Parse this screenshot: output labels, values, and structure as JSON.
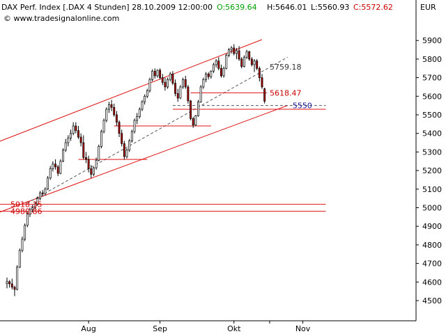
{
  "header": {
    "title": "DAX Perf. Index [.DAX  4 Stunden] 28.10.2009 12:00:00",
    "open": "O:5639.64",
    "high": "H:5646.01",
    "low": "L:5560.93",
    "close": "C:5572.62",
    "watermark": "© www.tradesignalonline.com",
    "currency": "EUR"
  },
  "colors": {
    "background": "#ffffff",
    "candle_up": "#ffffff",
    "candle_down": "#b00000",
    "candle_outline": "#000000",
    "support_resistance": "#e01010",
    "channel": "#e01010",
    "midline": "#555555",
    "target": "#1a1a99",
    "axis": "#000000",
    "open_text": "#00a000",
    "close_text": "#cc0000"
  },
  "chart_data": {
    "type": "candlestick",
    "timeframe": "4 Stunden",
    "y_axis": {
      "min": 4450,
      "max": 5950,
      "ticks": [
        4500,
        4600,
        4700,
        4800,
        4900,
        5000,
        5100,
        5200,
        5300,
        5400,
        5500,
        5600,
        5700,
        5800,
        5900
      ]
    },
    "x_axis": {
      "bar_count": 125,
      "ticks": [
        {
          "label": "Aug",
          "bar": 32
        },
        {
          "label": "Sep",
          "bar": 60
        },
        {
          "label": "Okt",
          "bar": 89
        }
      ],
      "unlabeled_ticks": [
        103
      ],
      "last_label": "Nov"
    },
    "bars": [
      [
        4591,
        4624,
        4566,
        4602
      ],
      [
        4602,
        4610,
        4570,
        4590
      ],
      [
        4590,
        4618,
        4560,
        4572
      ],
      [
        4572,
        4580,
        4524,
        4560
      ],
      [
        4560,
        4690,
        4555,
        4680
      ],
      [
        4680,
        4780,
        4675,
        4770
      ],
      [
        4770,
        4845,
        4760,
        4830
      ],
      [
        4830,
        4915,
        4820,
        4905
      ],
      [
        4905,
        4980,
        4895,
        4965
      ],
      [
        4965,
        5000,
        4950,
        4990
      ],
      [
        4990,
        5015,
        4975,
        5000
      ],
      [
        5000,
        5030,
        4990,
        5020
      ],
      [
        5020,
        5060,
        5010,
        5050
      ],
      [
        5050,
        5090,
        5040,
        5080
      ],
      [
        5080,
        5095,
        5060,
        5075
      ],
      [
        5075,
        5110,
        5065,
        5100
      ],
      [
        5100,
        5170,
        5095,
        5160
      ],
      [
        5160,
        5225,
        5150,
        5210
      ],
      [
        5210,
        5250,
        5195,
        5235
      ],
      [
        5235,
        5260,
        5205,
        5220
      ],
      [
        5220,
        5230,
        5170,
        5185
      ],
      [
        5185,
        5260,
        5180,
        5250
      ],
      [
        5250,
        5320,
        5245,
        5310
      ],
      [
        5310,
        5370,
        5300,
        5350
      ],
      [
        5350,
        5390,
        5330,
        5375
      ],
      [
        5375,
        5420,
        5360,
        5400
      ],
      [
        5400,
        5460,
        5390,
        5440
      ],
      [
        5440,
        5460,
        5400,
        5415
      ],
      [
        5415,
        5440,
        5370,
        5380
      ],
      [
        5380,
        5400,
        5330,
        5350
      ],
      [
        5350,
        5390,
        5260,
        5270
      ],
      [
        5270,
        5300,
        5240,
        5260
      ],
      [
        5260,
        5280,
        5190,
        5210
      ],
      [
        5210,
        5230,
        5160,
        5180
      ],
      [
        5180,
        5220,
        5170,
        5215
      ],
      [
        5215,
        5270,
        5205,
        5255
      ],
      [
        5255,
        5340,
        5250,
        5330
      ],
      [
        5330,
        5420,
        5320,
        5410
      ],
      [
        5410,
        5480,
        5400,
        5470
      ],
      [
        5470,
        5540,
        5460,
        5530
      ],
      [
        5530,
        5570,
        5510,
        5555
      ],
      [
        5555,
        5580,
        5520,
        5540
      ],
      [
        5540,
        5560,
        5490,
        5500
      ],
      [
        5500,
        5520,
        5440,
        5460
      ],
      [
        5460,
        5470,
        5380,
        5400
      ],
      [
        5400,
        5420,
        5330,
        5345
      ],
      [
        5345,
        5360,
        5260,
        5275
      ],
      [
        5275,
        5320,
        5265,
        5310
      ],
      [
        5310,
        5370,
        5300,
        5360
      ],
      [
        5360,
        5420,
        5350,
        5410
      ],
      [
        5410,
        5480,
        5400,
        5470
      ],
      [
        5470,
        5510,
        5450,
        5490
      ],
      [
        5490,
        5540,
        5480,
        5530
      ],
      [
        5530,
        5580,
        5520,
        5570
      ],
      [
        5570,
        5610,
        5555,
        5600
      ],
      [
        5600,
        5640,
        5590,
        5630
      ],
      [
        5630,
        5700,
        5620,
        5690
      ],
      [
        5690,
        5745,
        5680,
        5735
      ],
      [
        5735,
        5750,
        5695,
        5710
      ],
      [
        5710,
        5745,
        5700,
        5740
      ],
      [
        5740,
        5750,
        5690,
        5700
      ],
      [
        5700,
        5720,
        5660,
        5675
      ],
      [
        5675,
        5700,
        5630,
        5650
      ],
      [
        5650,
        5700,
        5640,
        5690
      ],
      [
        5690,
        5730,
        5680,
        5720
      ],
      [
        5720,
        5735,
        5660,
        5670
      ],
      [
        5670,
        5690,
        5600,
        5615
      ],
      [
        5615,
        5640,
        5570,
        5590
      ],
      [
        5590,
        5660,
        5585,
        5650
      ],
      [
        5650,
        5700,
        5640,
        5690
      ],
      [
        5690,
        5710,
        5640,
        5650
      ],
      [
        5650,
        5660,
        5560,
        5575
      ],
      [
        5575,
        5580,
        5470,
        5480
      ],
      [
        5480,
        5490,
        5430,
        5445
      ],
      [
        5445,
        5500,
        5440,
        5495
      ],
      [
        5495,
        5580,
        5490,
        5570
      ],
      [
        5570,
        5660,
        5565,
        5650
      ],
      [
        5650,
        5700,
        5640,
        5690
      ],
      [
        5690,
        5730,
        5675,
        5720
      ],
      [
        5720,
        5730,
        5690,
        5705
      ],
      [
        5705,
        5740,
        5695,
        5735
      ],
      [
        5735,
        5780,
        5725,
        5770
      ],
      [
        5770,
        5800,
        5755,
        5790
      ],
      [
        5790,
        5810,
        5740,
        5750
      ],
      [
        5750,
        5770,
        5700,
        5710
      ],
      [
        5710,
        5760,
        5700,
        5750
      ],
      [
        5750,
        5830,
        5745,
        5820
      ],
      [
        5820,
        5860,
        5810,
        5850
      ],
      [
        5850,
        5870,
        5830,
        5860
      ],
      [
        5860,
        5880,
        5820,
        5830
      ],
      [
        5830,
        5860,
        5800,
        5845
      ],
      [
        5845,
        5870,
        5790,
        5800
      ],
      [
        5800,
        5810,
        5750,
        5760
      ],
      [
        5760,
        5820,
        5755,
        5810
      ],
      [
        5810,
        5850,
        5800,
        5840
      ],
      [
        5840,
        5845,
        5790,
        5800
      ],
      [
        5800,
        5810,
        5760,
        5770
      ],
      [
        5770,
        5800,
        5730,
        5790
      ],
      [
        5790,
        5800,
        5740,
        5750
      ],
      [
        5750,
        5760,
        5680,
        5700
      ],
      [
        5700,
        5720,
        5640,
        5650
      ],
      [
        5640,
        5646,
        5561,
        5573
      ]
    ],
    "horizontal_lines": [
      {
        "y": 5618.47,
        "label": "5618.47",
        "x0_bar": 72,
        "x1_bar": 102
      },
      {
        "y": 5550,
        "label": "5550",
        "x0_bar": 65,
        "x1_bar": 125,
        "style": "target"
      },
      {
        "y": 5530,
        "x0_bar": 65,
        "x1_bar": 125
      },
      {
        "y": 5440,
        "x0_bar": 42,
        "x1_bar": 80
      },
      {
        "y": 5260,
        "x0_bar": 28,
        "x1_bar": 55
      },
      {
        "y": 5018.35,
        "label": "5018.35",
        "x0_bar": -8,
        "x1_bar": 125
      },
      {
        "y": 4980.86,
        "label": "4980.86",
        "x0_bar": -8,
        "x1_bar": 125
      }
    ],
    "labels": [
      {
        "text": "5759.18",
        "y": 5759.18,
        "x_bar": 103
      },
      {
        "text": "5618.47",
        "y": 5618.47,
        "x_bar": 103
      },
      {
        "text": "5550",
        "y": 5550,
        "x_bar": 112
      },
      {
        "text": "5018.35",
        "y": 5018.35,
        "x_bar": -7
      },
      {
        "text": "4980.86",
        "y": 4980.86,
        "x_bar": -7
      }
    ],
    "channel": {
      "upper": {
        "bar0": -8,
        "y0": 5330,
        "bar1": 100,
        "y1": 5905
      },
      "lower": {
        "bar0": -8,
        "y0": 4950,
        "bar1": 110,
        "y1": 5550
      },
      "midline": {
        "bar0": 8,
        "y0": 5025,
        "bar1": 110,
        "y1": 5810
      }
    }
  }
}
